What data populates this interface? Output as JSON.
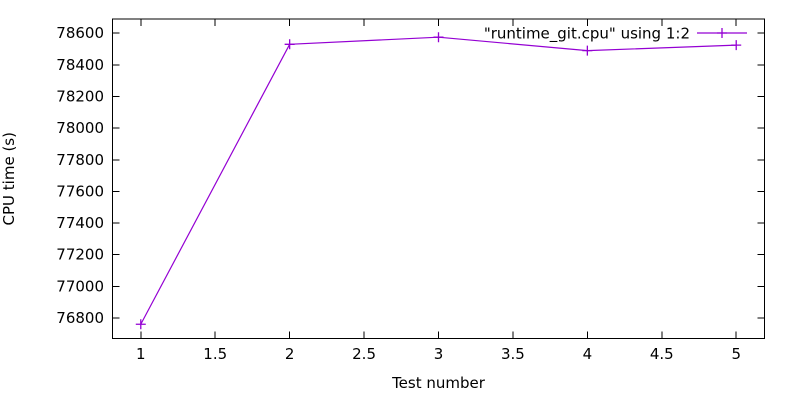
{
  "window": {
    "background": "#ffffff"
  },
  "chart_data": {
    "type": "line",
    "title": "",
    "xlabel": "Test number",
    "ylabel": "CPU time (s)",
    "x": [
      1,
      2,
      3,
      4,
      5
    ],
    "series": [
      {
        "name": "\"runtime_git.cpu\" using 1:2",
        "color": "#9400d3",
        "marker": "plus",
        "values": [
          76760,
          78530,
          78575,
          78490,
          78525
        ]
      }
    ],
    "xticks": [
      1,
      1.5,
      2,
      2.5,
      3,
      3.5,
      4,
      4.5,
      5
    ],
    "yticks": [
      76800,
      77000,
      77200,
      77400,
      77600,
      77800,
      78000,
      78200,
      78400,
      78600
    ],
    "xlim": [
      0.81,
      5.19
    ],
    "ylim": [
      76670,
      78690
    ],
    "grid": false,
    "legend_position": "top-right-inside",
    "axis_color": "#000000",
    "text_color": "#000000"
  }
}
